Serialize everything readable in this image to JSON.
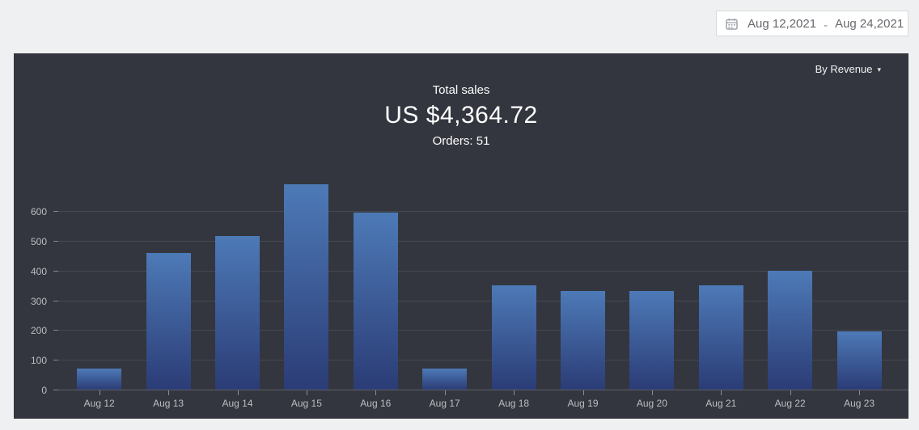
{
  "date_picker": {
    "start": "Aug 12,2021",
    "separator": "-",
    "end": "Aug 24,2021"
  },
  "panel": {
    "filter": {
      "label": "By Revenue",
      "caret": "▾"
    },
    "summary": {
      "title": "Total sales",
      "amount": "US $4,364.72",
      "orders": "Orders: 51"
    }
  },
  "chart_data": {
    "type": "bar",
    "title": "Total sales",
    "categories": [
      "Aug 12",
      "Aug 13",
      "Aug 14",
      "Aug 15",
      "Aug 16",
      "Aug 17",
      "Aug 18",
      "Aug 19",
      "Aug 20",
      "Aug 21",
      "Aug 22",
      "Aug 23"
    ],
    "values": [
      70,
      460,
      515,
      690,
      595,
      70,
      350,
      330,
      330,
      350,
      400,
      195
    ],
    "xlabel": "",
    "ylabel": "",
    "ylim": [
      0,
      600
    ],
    "yticks": [
      0,
      100,
      200,
      300,
      400,
      500,
      600
    ],
    "grid": true,
    "legend": false,
    "bar_color_top": "#4d7ab7",
    "bar_color_bottom": "#2b3c76"
  },
  "colors": {
    "page_background": "#eff0f1",
    "panel_background": "#33363e",
    "gridline": "#46494f",
    "axis_text": "#bcbec2",
    "primary_text": "#ffffff",
    "datebox_text": "#66696e"
  }
}
